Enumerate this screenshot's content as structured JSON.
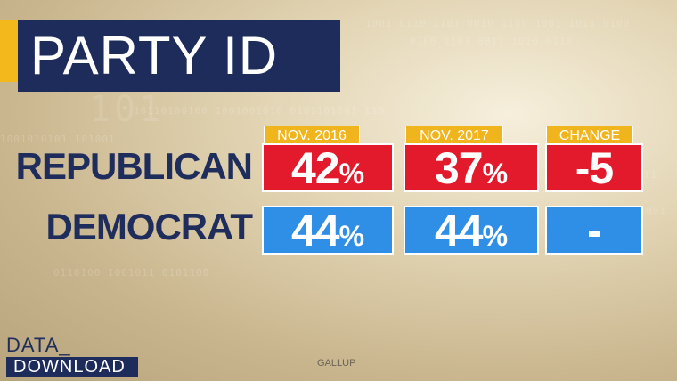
{
  "title": "PARTY ID",
  "columns": [
    "NOV. 2016",
    "NOV. 2017",
    "CHANGE"
  ],
  "rows": [
    {
      "label": "REPUBLICAN",
      "nov2016": "42",
      "nov2017": "37",
      "change": "-5"
    },
    {
      "label": "DEMOCRAT",
      "nov2016": "44",
      "nov2017": "44",
      "change": "-"
    }
  ],
  "percent_sign": "%",
  "logo": {
    "line1": "DATA_",
    "line2": "DOWNLOAD"
  },
  "source": "GALLUP",
  "colors": {
    "navy": "#1e2c5b",
    "gold": "#f0b41d",
    "red": "#e21a2c",
    "blue": "#2f8fe6"
  }
}
